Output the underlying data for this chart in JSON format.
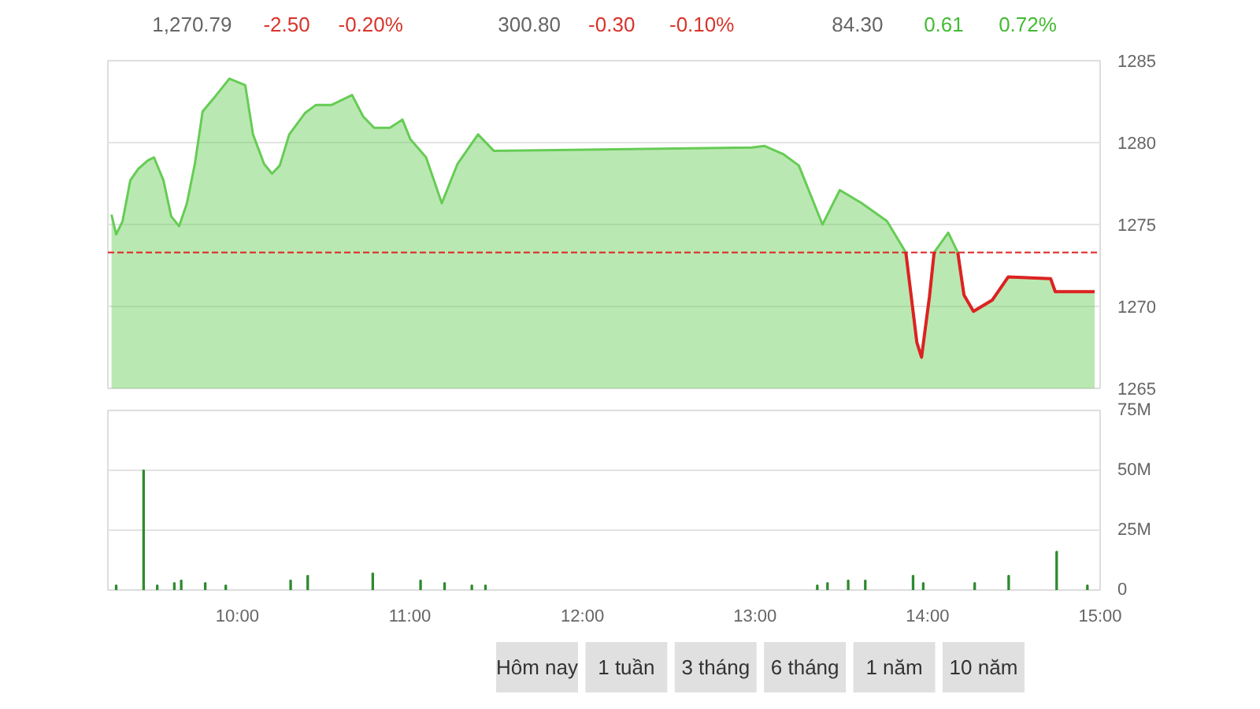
{
  "chart_data": [
    {
      "type": "other",
      "annotations": [
        "1,270.79",
        "-2.50",
        "-0.20%",
        "300.80",
        "-0.30",
        "-0.10%",
        "84.30",
        "0.61",
        "0.72%"
      ]
    },
    {
      "type": "area",
      "x": [
        9.271,
        9.298,
        9.335,
        9.38,
        9.426,
        9.48,
        9.517,
        9.572,
        9.617,
        9.663,
        9.708,
        9.754,
        9.799,
        9.863,
        9.954,
        10.046,
        10.091,
        10.155,
        10.201,
        10.246,
        10.301,
        10.392,
        10.456,
        10.547,
        10.665,
        10.729,
        10.793,
        10.884,
        10.957,
        11.003,
        11.094,
        11.185,
        11.276,
        11.395,
        11.486,
        12.981,
        13.054,
        13.163,
        13.254,
        13.391,
        13.491,
        13.619,
        13.765,
        13.874,
        13.938,
        13.965,
        14.011,
        14.038,
        14.12,
        14.175,
        14.211,
        14.266,
        14.376,
        14.467,
        14.713,
        14.74,
        14.968
      ],
      "series": [
        {
          "color": "#66cc55",
          "values": [
            1275.6,
            1274.4,
            1275.2,
            1277.7,
            1278.4,
            1278.9,
            1279.1,
            1277.7,
            1275.5,
            1274.9,
            1276.3,
            1278.7,
            1281.9,
            1282.7,
            1283.9,
            1283.5,
            1280.5,
            1278.7,
            1278.1,
            1278.6,
            1280.5,
            1281.8,
            1282.3,
            1282.3,
            1282.9,
            1281.6,
            1280.9,
            1280.9,
            1281.4,
            1280.2,
            1279.1,
            1276.3,
            1278.7,
            1280.5,
            1279.5,
            1279.7,
            1279.8,
            1279.3,
            1278.6,
            1275.0,
            1277.1,
            1276.3,
            1275.2,
            1273.3,
            1267.8,
            1266.9,
            1270.6,
            1273.3,
            1274.5,
            1273.3,
            1270.7,
            1269.7,
            1270.4,
            1271.8,
            1271.7,
            1270.9,
            1270.9
          ]
        },
        {
          "type": "line",
          "color": "#dd2222",
          "values": [
            null,
            null,
            null,
            null,
            null,
            null,
            null,
            null,
            null,
            null,
            null,
            null,
            null,
            null,
            null,
            null,
            null,
            null,
            null,
            null,
            null,
            null,
            null,
            null,
            null,
            null,
            null,
            null,
            null,
            null,
            null,
            null,
            null,
            null,
            null,
            null,
            null,
            null,
            null,
            null,
            null,
            null,
            null,
            1273.3,
            1267.8,
            1266.9,
            1270.6,
            1273.3,
            null,
            1273.3,
            1270.7,
            1269.7,
            1270.4,
            1271.8,
            1271.7,
            1270.9,
            1270.9
          ]
        }
      ],
      "xlim": [
        9.25,
        15.0
      ],
      "ylim": [
        1265,
        1285
      ],
      "yticks": [
        1265,
        1270,
        1275,
        1280,
        1285
      ],
      "ref_lines": [
        {
          "axis": "y",
          "value": 1273.29,
          "color": "#dd2222",
          "line_style": "dashed"
        }
      ],
      "grid": "y",
      "tick_labels": "y"
    },
    {
      "type": "bar",
      "x": [
        9.298,
        9.457,
        9.536,
        9.635,
        9.675,
        9.814,
        9.933,
        10.309,
        10.408,
        10.785,
        11.062,
        11.201,
        11.359,
        11.438,
        13.361,
        13.42,
        13.54,
        13.639,
        13.916,
        13.975,
        14.273,
        14.47,
        14.748,
        14.926
      ],
      "series": [
        {
          "color": "#2e8b2e",
          "values": [
            2,
            50,
            2,
            3,
            4,
            3,
            2,
            4,
            6,
            7,
            4,
            3,
            2,
            2,
            2,
            3,
            4,
            4,
            6,
            3,
            3,
            6,
            16,
            2
          ]
        }
      ],
      "xlim": [
        9.25,
        15.0
      ],
      "xticks": [
        {
          "value": 10,
          "label": "10:00"
        },
        {
          "value": 11,
          "label": "11:00"
        },
        {
          "value": 12,
          "label": "12:00"
        },
        {
          "value": 13,
          "label": "13:00"
        },
        {
          "value": 14,
          "label": "14:00"
        },
        {
          "value": 15,
          "label": "15:00"
        }
      ],
      "ylim": [
        0,
        75
      ],
      "yticks": [
        0,
        {
          "value": 25,
          "label": "25M"
        },
        {
          "value": 50,
          "label": "50M"
        },
        {
          "value": 75,
          "label": "75M"
        }
      ],
      "grid": "y"
    },
    {
      "type": "other",
      "annotations": [
        "Hôm nay",
        "1 tuần",
        "3 tháng",
        "6 tháng",
        "1 năm",
        "10 năm"
      ]
    }
  ]
}
